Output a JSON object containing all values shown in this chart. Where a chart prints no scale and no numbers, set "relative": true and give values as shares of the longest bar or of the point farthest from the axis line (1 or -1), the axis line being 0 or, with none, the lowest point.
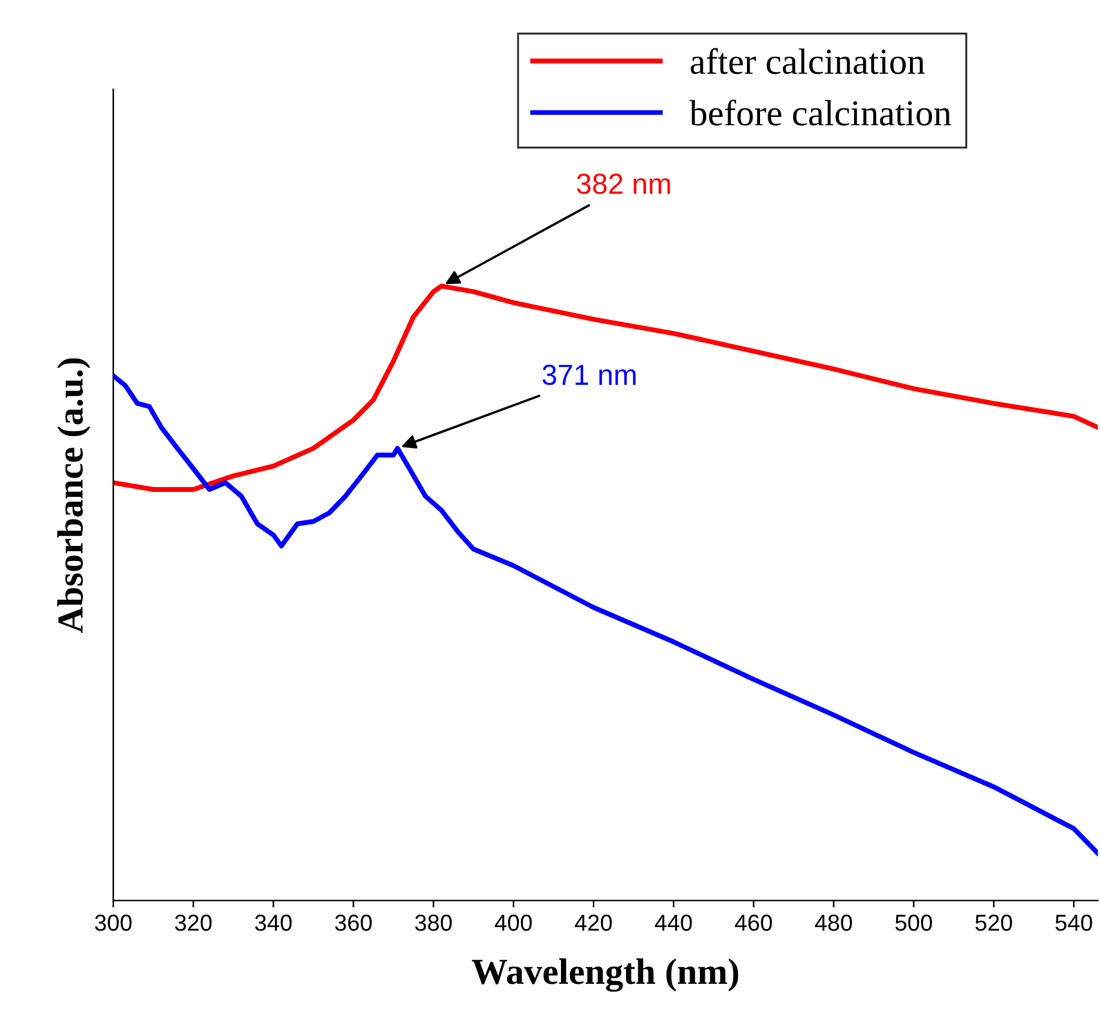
{
  "chart_data": {
    "type": "line",
    "relative": true,
    "xlabel": "Wavelength (nm)",
    "ylabel": "Absorbance (a.u.)",
    "xlim": [
      300,
      546
    ],
    "xticks": [
      300,
      320,
      340,
      360,
      380,
      400,
      420,
      440,
      460,
      480,
      500,
      520,
      540
    ],
    "legend": "top right",
    "grid": false,
    "marker": "none",
    "line_style": "solid",
    "series": [
      {
        "name": "after calcination",
        "color": "#ff0000",
        "x": [
          300,
          310,
          320,
          330,
          340,
          350,
          360,
          365,
          370,
          375,
          380,
          382,
          390,
          400,
          420,
          440,
          460,
          480,
          500,
          520,
          540,
          546
        ],
        "values": [
          0.68,
          0.669,
          0.669,
          0.691,
          0.707,
          0.736,
          0.782,
          0.815,
          0.878,
          0.95,
          0.991,
          1.0,
          0.991,
          0.973,
          0.946,
          0.923,
          0.894,
          0.865,
          0.833,
          0.809,
          0.788,
          0.77
        ]
      },
      {
        "name": "before calcination",
        "color": "#0000ff",
        "x": [
          300,
          303,
          306,
          309,
          312,
          316,
          320,
          324,
          328,
          332,
          336,
          340,
          342,
          346,
          350,
          354,
          358,
          362,
          366,
          370,
          371,
          374,
          378,
          382,
          386,
          390,
          400,
          410,
          420,
          440,
          460,
          480,
          500,
          520,
          540,
          546
        ],
        "values": [
          0.854,
          0.838,
          0.809,
          0.804,
          0.77,
          0.736,
          0.703,
          0.669,
          0.68,
          0.658,
          0.613,
          0.595,
          0.577,
          0.613,
          0.617,
          0.631,
          0.658,
          0.691,
          0.725,
          0.725,
          0.736,
          0.703,
          0.658,
          0.635,
          0.601,
          0.572,
          0.545,
          0.511,
          0.477,
          0.421,
          0.36,
          0.302,
          0.241,
          0.185,
          0.117,
          0.077
        ]
      }
    ],
    "annotations": [
      {
        "text": "382 nm",
        "x": 382,
        "y": 1.0
      },
      {
        "text": "371 nm",
        "x": 371,
        "y": 0.736
      }
    ]
  }
}
